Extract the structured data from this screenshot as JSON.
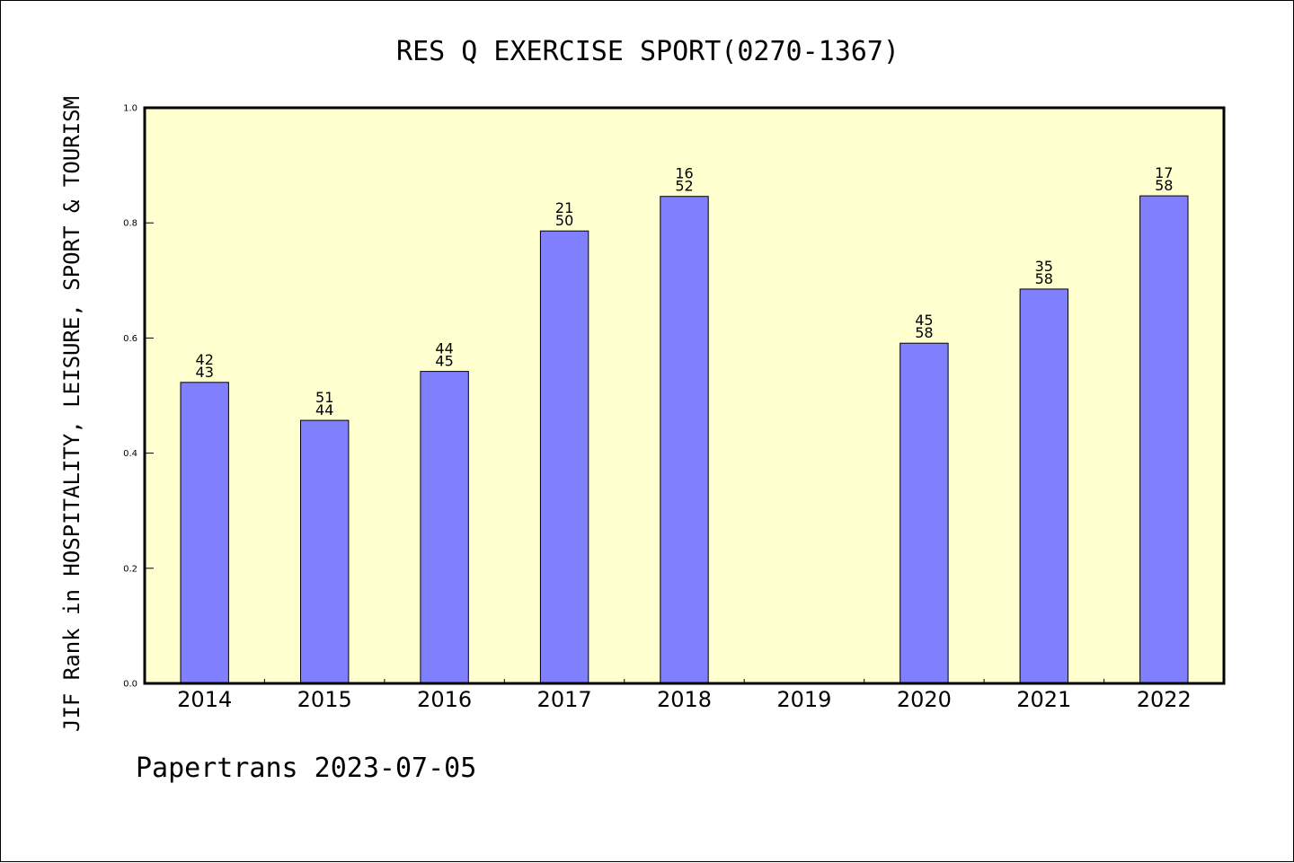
{
  "chart_data": {
    "type": "bar",
    "title": "RES Q EXERCISE SPORT(0270-1367)",
    "ylabel": "JIF Rank in HOSPITALITY, LEISURE, SPORT & TOURISM",
    "xlabel": "",
    "ylim": [
      0,
      1.0
    ],
    "yticks": [
      "0.0",
      "0.2",
      "0.4",
      "0.6",
      "0.8",
      "1.0"
    ],
    "categories": [
      "2014",
      "2015",
      "2016",
      "2017",
      "2018",
      "2019",
      "2020",
      "2021",
      "2022"
    ],
    "values": [
      0.523,
      0.457,
      0.542,
      0.786,
      0.846,
      null,
      0.591,
      0.685,
      0.847
    ],
    "rank_labels": [
      {
        "rank": "42",
        "total": "43"
      },
      {
        "rank": "51",
        "total": "44"
      },
      {
        "rank": "44",
        "total": "45"
      },
      {
        "rank": "21",
        "total": "50"
      },
      {
        "rank": "16",
        "total": "52"
      },
      null,
      {
        "rank": "45",
        "total": "58"
      },
      {
        "rank": "35",
        "total": "58"
      },
      {
        "rank": "17",
        "total": "58"
      }
    ],
    "grid": false,
    "colors": {
      "bar": "#8080ff",
      "plot_background": "#ffffd0"
    }
  },
  "footer": "Papertrans 2023-07-05"
}
